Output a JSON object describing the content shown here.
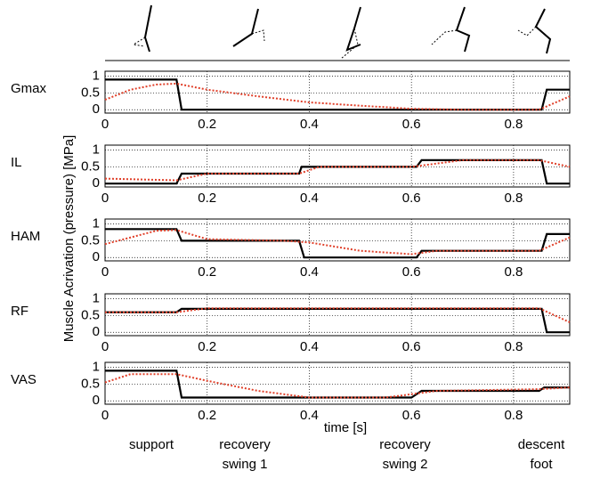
{
  "y_label": "Muscle Acrivation (pressure) [MPa]",
  "x_label": "time [s]",
  "phases": [
    [
      "support"
    ],
    [
      "recovery",
      "swing 1"
    ],
    [
      "recovery",
      "swing 2"
    ],
    [
      "descent",
      "foot"
    ]
  ],
  "chart_data": [
    {
      "type": "line",
      "title": "Gmax",
      "xlim": [
        0,
        0.91
      ],
      "ylim": [
        -0.1,
        1.15
      ],
      "xticks": [
        0,
        0.2,
        0.4,
        0.6,
        0.8
      ],
      "yticks": [
        0,
        0.5,
        1
      ],
      "grid": true,
      "series": [
        {
          "color": "#000000",
          "style": "solid",
          "x": [
            0,
            0.14,
            0.15,
            0.855,
            0.865,
            0.91
          ],
          "values": [
            0.9,
            0.9,
            0,
            0,
            0.6,
            0.6
          ]
        },
        {
          "color": "#e0402a",
          "style": "dotted",
          "x": [
            0,
            0.05,
            0.1,
            0.14,
            0.2,
            0.3,
            0.4,
            0.5,
            0.6,
            0.7,
            0.85,
            0.88,
            0.91
          ],
          "values": [
            0.3,
            0.6,
            0.75,
            0.78,
            0.6,
            0.4,
            0.22,
            0.12,
            0.03,
            0,
            0,
            0.2,
            0.4
          ]
        }
      ]
    },
    {
      "type": "line",
      "title": "IL",
      "xlim": [
        0,
        0.91
      ],
      "ylim": [
        -0.1,
        1.15
      ],
      "xticks": [
        0,
        0.2,
        0.4,
        0.6,
        0.8
      ],
      "yticks": [
        0,
        0.5,
        1
      ],
      "grid": true,
      "series": [
        {
          "color": "#000000",
          "style": "solid",
          "x": [
            0,
            0.14,
            0.15,
            0.38,
            0.385,
            0.61,
            0.62,
            0.855,
            0.865,
            0.91
          ],
          "values": [
            0,
            0,
            0.3,
            0.3,
            0.5,
            0.5,
            0.7,
            0.7,
            0,
            0
          ]
        },
        {
          "color": "#e0402a",
          "style": "dotted",
          "x": [
            0,
            0.14,
            0.2,
            0.38,
            0.42,
            0.6,
            0.7,
            0.85,
            0.91
          ],
          "values": [
            0.15,
            0.1,
            0.3,
            0.3,
            0.5,
            0.5,
            0.7,
            0.7,
            0.5
          ]
        }
      ]
    },
    {
      "type": "line",
      "title": "HAM",
      "xlim": [
        0,
        0.91
      ],
      "ylim": [
        -0.1,
        1.15
      ],
      "xticks": [
        0,
        0.2,
        0.4,
        0.6,
        0.8
      ],
      "yticks": [
        0,
        0.5,
        1
      ],
      "grid": true,
      "series": [
        {
          "color": "#000000",
          "style": "solid",
          "x": [
            0,
            0.14,
            0.15,
            0.38,
            0.39,
            0.61,
            0.62,
            0.855,
            0.865,
            0.91
          ],
          "values": [
            0.85,
            0.85,
            0.5,
            0.5,
            0,
            0,
            0.2,
            0.2,
            0.7,
            0.7
          ]
        },
        {
          "color": "#e0402a",
          "style": "dotted",
          "x": [
            0,
            0.1,
            0.14,
            0.2,
            0.35,
            0.4,
            0.5,
            0.6,
            0.65,
            0.85,
            0.91
          ],
          "values": [
            0.4,
            0.8,
            0.82,
            0.55,
            0.5,
            0.45,
            0.2,
            0.1,
            0.2,
            0.2,
            0.6
          ]
        }
      ]
    },
    {
      "type": "line",
      "title": "RF",
      "xlim": [
        0,
        0.91
      ],
      "ylim": [
        -0.1,
        1.15
      ],
      "xticks": [
        0,
        0.2,
        0.4,
        0.6,
        0.8
      ],
      "yticks": [
        0,
        0.5,
        1
      ],
      "grid": true,
      "series": [
        {
          "color": "#000000",
          "style": "solid",
          "x": [
            0,
            0.14,
            0.15,
            0.855,
            0.865,
            0.91
          ],
          "values": [
            0.6,
            0.6,
            0.7,
            0.7,
            0,
            0
          ]
        },
        {
          "color": "#e0402a",
          "style": "dotted",
          "x": [
            0,
            0.14,
            0.2,
            0.85,
            0.91
          ],
          "values": [
            0.6,
            0.6,
            0.72,
            0.72,
            0.3
          ]
        }
      ]
    },
    {
      "type": "line",
      "title": "VAS",
      "xlim": [
        0,
        0.91
      ],
      "ylim": [
        -0.1,
        1.15
      ],
      "xticks": [
        0,
        0.2,
        0.4,
        0.6,
        0.8
      ],
      "yticks": [
        0,
        0.5,
        1
      ],
      "grid": true,
      "series": [
        {
          "color": "#000000",
          "style": "solid",
          "x": [
            0,
            0.14,
            0.15,
            0.6,
            0.62,
            0.85,
            0.86,
            0.91
          ],
          "values": [
            0.9,
            0.9,
            0.1,
            0.1,
            0.3,
            0.3,
            0.4,
            0.4
          ]
        },
        {
          "color": "#e0402a",
          "style": "dotted",
          "x": [
            0,
            0.05,
            0.14,
            0.2,
            0.3,
            0.4,
            0.55,
            0.65,
            0.85,
            0.91
          ],
          "values": [
            0.55,
            0.8,
            0.8,
            0.6,
            0.3,
            0.1,
            0.1,
            0.3,
            0.35,
            0.4
          ]
        }
      ]
    }
  ]
}
